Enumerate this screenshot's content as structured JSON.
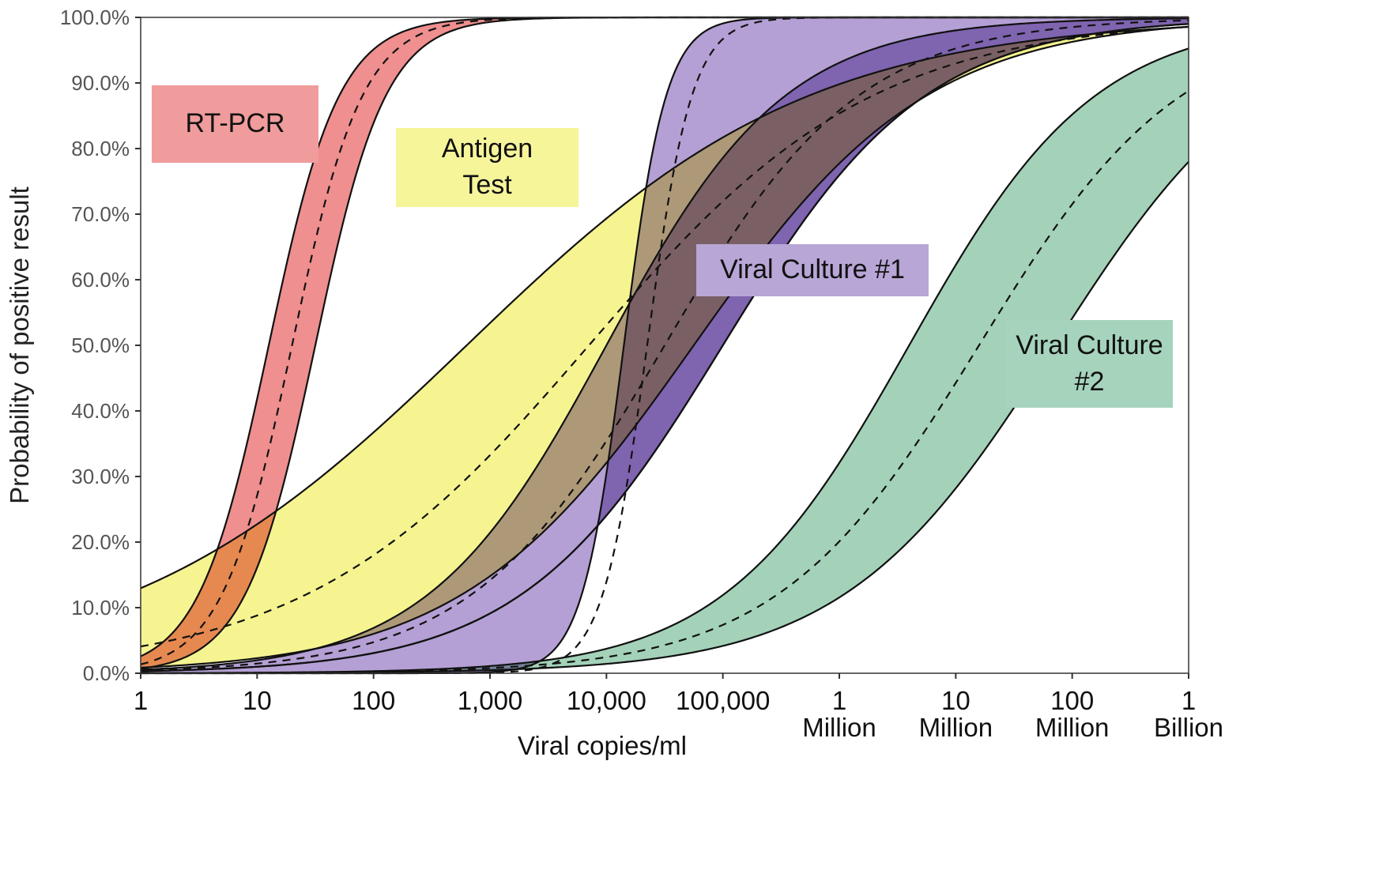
{
  "chart_data": {
    "type": "area",
    "title": "",
    "xlabel": "Viral copies/ml",
    "ylabel": "Probability of positive result",
    "xscale": "log10",
    "xlim_log10": [
      0,
      9
    ],
    "ylim": [
      0,
      100
    ],
    "yticks": [
      "0.0%",
      "10.0%",
      "20.0%",
      "30.0%",
      "40.0%",
      "50.0%",
      "60.0%",
      "70.0%",
      "80.0%",
      "90.0%",
      "100.0%"
    ],
    "xticks": [
      [
        "1"
      ],
      [
        "10"
      ],
      [
        "100"
      ],
      [
        "1,000"
      ],
      [
        "10,000"
      ],
      [
        "100,000"
      ],
      [
        "1",
        "Million"
      ],
      [
        "10",
        "Million"
      ],
      [
        "100",
        "Million"
      ],
      [
        "1",
        "Billion"
      ]
    ],
    "series": [
      {
        "name": "RT-PCR",
        "color": "#ef8f8f",
        "bands": [
          {
            "upper": {
              "mid_log10": 1.1,
              "slope": 3.3
            },
            "lower": {
              "mid_log10": 1.5,
              "slope": 3.3
            }
          }
        ],
        "medians": [
          {
            "mid_log10": 1.3,
            "slope": 3.3
          }
        ]
      },
      {
        "name": "Antigen Test",
        "color": "#f6f490",
        "bands": [
          {
            "upper": {
              "mid_log10": 2.8,
              "slope": 0.68
            },
            "lower": {
              "mid_log10": 4.75,
              "slope": 1.0
            }
          }
        ],
        "medians": [
          {
            "mid_log10": 3.85,
            "slope": 0.82
          }
        ]
      },
      {
        "name": "Viral Culture #1",
        "color": "#b4a0d4",
        "bands": [
          {
            "upper": {
              "mid_log10": 4.15,
              "slope": 5.5
            },
            "lower": {
              "mid_log10": 5.0,
              "slope": 1.15
            }
          },
          {
            "upper": {
              "mid_log10": 4.0,
              "slope": 1.3
            },
            "lower": {
              "mid_log10": 5.0,
              "slope": 1.15
            }
          }
        ],
        "medians": [
          {
            "mid_log10": 4.35,
            "slope": 5.2
          },
          {
            "mid_log10": 4.5,
            "slope": 1.2
          }
        ]
      },
      {
        "name": "Viral Culture #2",
        "color": "#a3d2b9",
        "bands": [
          {
            "upper": {
              "mid_log10": 6.6,
              "slope": 1.25
            },
            "lower": {
              "mid_log10": 7.85,
              "slope": 1.1
            }
          }
        ],
        "medians": [
          {
            "mid_log10": 7.2,
            "slope": 1.15
          }
        ]
      }
    ],
    "legend_labels": [
      {
        "text": "RT-PCR",
        "color": "#f09c9c"
      },
      {
        "text": "Antigen Test",
        "color": "#f7f59a"
      },
      {
        "text": "Viral Culture #1",
        "color": "#b8a6d6"
      },
      {
        "text": "Viral Culture #2",
        "color": "#a6d3bc"
      }
    ],
    "grid": false
  }
}
